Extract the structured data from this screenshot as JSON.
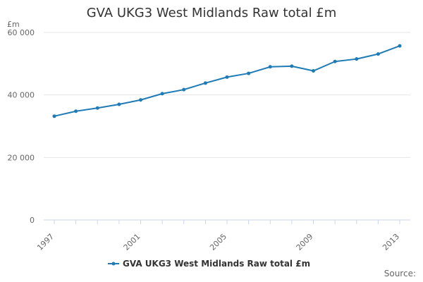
{
  "chart_data": {
    "type": "line",
    "title": "GVA UKG3 West Midlands Raw total £m",
    "ylabel": "£m",
    "xlabel": "",
    "ylim": [
      0,
      60000
    ],
    "yticks": [
      0,
      20000,
      40000,
      60000
    ],
    "ytick_labels": [
      "0",
      "20 000",
      "40 000",
      "60 000"
    ],
    "xticks": [
      1997,
      2001,
      2005,
      2009,
      2013
    ],
    "xtick_labels": [
      "1997",
      "2001",
      "2005",
      "2009",
      "2013"
    ],
    "x": [
      1997,
      1998,
      1999,
      2000,
      2001,
      2002,
      2003,
      2004,
      2005,
      2006,
      2007,
      2008,
      2009,
      2010,
      2011,
      2012,
      2013
    ],
    "series": [
      {
        "name": "GVA UKG3 West Midlands Raw total £m",
        "color": "#1f7bb6",
        "values": [
          33200,
          34800,
          35800,
          37000,
          38400,
          40400,
          41700,
          43800,
          45700,
          46900,
          49000,
          49200,
          47700,
          50700,
          51500,
          53100,
          55700
        ]
      }
    ],
    "grid": true,
    "legend_position": "bottom-center"
  },
  "footer": {
    "source": "Source:"
  }
}
